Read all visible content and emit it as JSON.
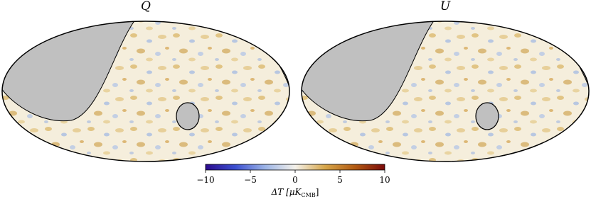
{
  "chart_data": {
    "type": "sky-maps",
    "panels": [
      {
        "title": "Q"
      },
      {
        "title": "U"
      }
    ],
    "colorbar": {
      "lim": [
        -10,
        10
      ],
      "ticks": [
        {
          "value": -10,
          "label": "−10"
        },
        {
          "value": -5,
          "label": "−5"
        },
        0,
        5,
        10
      ],
      "colors": [
        "#2b0a8c",
        "#3b4fd0",
        "#9cb4e6",
        "#f4f1ea",
        "#d6a64a",
        "#b25a12",
        "#7a0a0a"
      ],
      "label_main": "ΔT [μK",
      "label_sub": "CMB",
      "label_close": "]"
    },
    "mask_color": "#c0c0c0"
  }
}
